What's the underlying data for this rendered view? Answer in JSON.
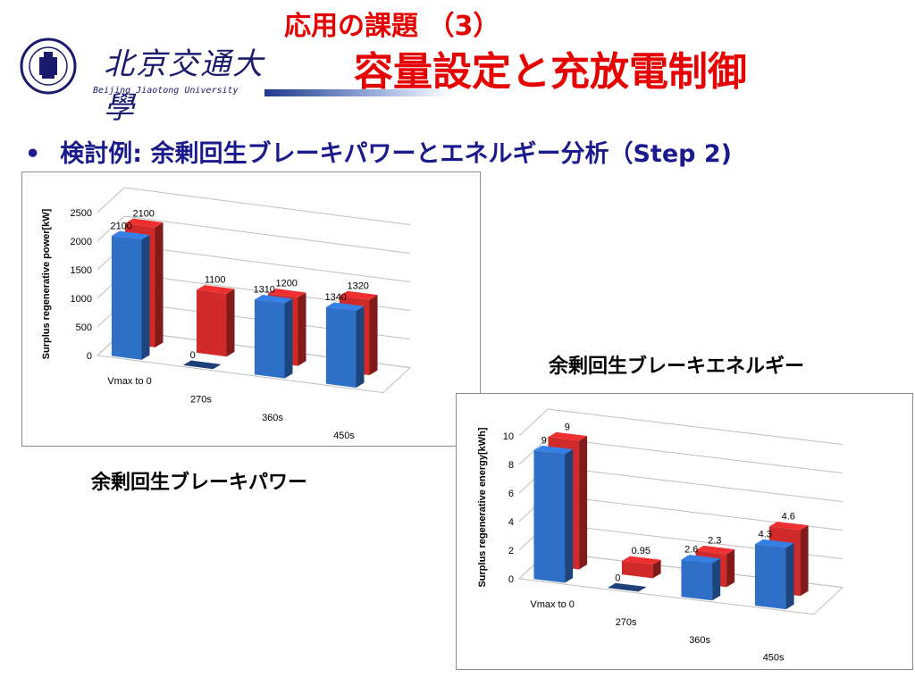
{
  "header": {
    "university_cn": "北京交通大學",
    "university_en": "Beijing Jiaotong University",
    "title_line1": "応用の課題 （3）",
    "title_line2": "容量設定と充放電制御"
  },
  "bullet": {
    "symbol": "•",
    "text": "検討例:  余剰回生ブレーキパワーとエネルギー分析（Step 2)"
  },
  "captions": {
    "power": "余剰回生ブレーキパワー",
    "energy": "余剰回生ブレーキエネルギー"
  },
  "colors": {
    "title_red": "#e60000",
    "bullet_blue": "#1a1a8c",
    "series_blue": "#2e6fc8",
    "series_red": "#d12a2a"
  },
  "chart_data": [
    {
      "type": "bar",
      "title": "",
      "ylabel": "Surplus regenerative power[kW]",
      "xlabel": "",
      "ylim": [
        0,
        2500
      ],
      "yticks": [
        0,
        500,
        1000,
        1500,
        2000,
        2500
      ],
      "categories": [
        "Vmax to 0",
        "270s",
        "360s",
        "450s"
      ],
      "series": [
        {
          "values": [
            2100,
            0,
            1310,
            1340
          ],
          "labels": [
            "2100",
            "0",
            "1310",
            "1340"
          ]
        },
        {
          "values": [
            2100,
            1100,
            1200,
            1320
          ],
          "labels": [
            "2100",
            "1100",
            "1200",
            "1320"
          ]
        }
      ]
    },
    {
      "type": "bar",
      "title": "",
      "ylabel": "Surplus regenerative energy[kWh]",
      "xlabel": "",
      "ylim": [
        0,
        10
      ],
      "yticks": [
        0,
        2,
        4,
        6,
        8,
        10
      ],
      "categories": [
        "Vmax to 0",
        "270s",
        "360s",
        "450s"
      ],
      "series": [
        {
          "values": [
            9,
            0,
            2.6,
            4.3
          ],
          "labels": [
            "9",
            "0",
            "2.6",
            "4.3"
          ]
        },
        {
          "values": [
            9,
            0.95,
            2.3,
            4.6
          ],
          "labels": [
            "9",
            "0.95",
            "2.3",
            "4.6"
          ]
        }
      ]
    }
  ]
}
